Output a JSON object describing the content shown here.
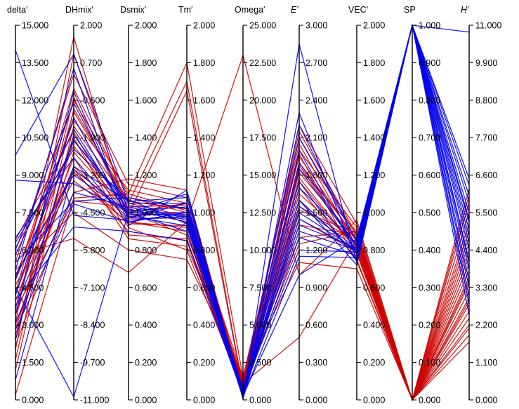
{
  "chart_data": {
    "type": "parallel_coordinates",
    "axes": [
      {
        "name": "delta′",
        "italic": false,
        "min": 0,
        "max": 15,
        "ticks": [
          "0.000",
          "1.500",
          "3.000",
          "4.500",
          "6.000",
          "7.500",
          "9.000",
          "10.500",
          "12.000",
          "13.500",
          "15.000"
        ]
      },
      {
        "name": "DHmix′",
        "italic": false,
        "min": -11,
        "max": 2,
        "ticks": [
          "-11.000",
          "-9.700",
          "-8.400",
          "-7.100",
          "-5.800",
          "-4.500",
          "-3.200",
          "-1.900",
          "-0.600",
          "0.700",
          "2.000"
        ]
      },
      {
        "name": "Dsmix′",
        "italic": false,
        "min": 0,
        "max": 2,
        "ticks": [
          "0.000",
          "0.200",
          "0.400",
          "0.600",
          "0.800",
          "1.000",
          "1.200",
          "1.400",
          "1.600",
          "1.800",
          "2.000"
        ]
      },
      {
        "name": "Tm′",
        "italic": false,
        "min": 0,
        "max": 2,
        "ticks": [
          "0.000",
          "0.200",
          "0.400",
          "0.600",
          "0.800",
          "1.000",
          "1.200",
          "1.400",
          "1.600",
          "1.800",
          "2.000"
        ]
      },
      {
        "name": "Omega′",
        "italic": false,
        "min": 0,
        "max": 25,
        "ticks": [
          "0.000",
          "2.500",
          "5.000",
          "7.500",
          "10.000",
          "12.500",
          "15.000",
          "17.500",
          "20.000",
          "22.500",
          "25.000"
        ]
      },
      {
        "name": "E′",
        "italic": true,
        "min": 0,
        "max": 3,
        "ticks": [
          "0.000",
          "0.300",
          "0.600",
          "0.900",
          "1.200",
          "1.500",
          "1.800",
          "2.100",
          "2.400",
          "2.700",
          "3.000"
        ]
      },
      {
        "name": "VEC′",
        "italic": false,
        "min": 0,
        "max": 2,
        "ticks": [
          "0.000",
          "0.200",
          "0.400",
          "0.600",
          "0.800",
          "1.000",
          "1.200",
          "1.400",
          "1.600",
          "1.800",
          "2.000"
        ]
      },
      {
        "name": "SP",
        "italic": false,
        "min": 0,
        "max": 1,
        "ticks": [
          "0.000",
          "0.100",
          "0.200",
          "0.300",
          "0.400",
          "0.500",
          "0.600",
          "0.700",
          "0.800",
          "0.900",
          "1.000"
        ]
      },
      {
        "name": "H′",
        "italic": true,
        "min": 0,
        "max": 11,
        "ticks": [
          "0.000",
          "1.100",
          "2.200",
          "3.300",
          "4.400",
          "5.500",
          "6.600",
          "7.700",
          "8.800",
          "9.900",
          "11.000"
        ]
      }
    ],
    "series": [
      {
        "group": "red",
        "color": "#cc0000",
        "values": [
          [
            0.2,
            -4.0,
            1.1,
            1.8,
            1.5,
            1.95,
            0.85,
            0.0,
            2.8
          ],
          [
            1.2,
            -1.5,
            1.05,
            1.7,
            0.8,
            1.85,
            0.9,
            0.0,
            3.5
          ],
          [
            2.0,
            1.0,
            1.0,
            1.05,
            1.0,
            2.15,
            0.88,
            0.0,
            4.2
          ],
          [
            2.4,
            -0.5,
            0.98,
            1.0,
            0.6,
            2.05,
            0.82,
            0.0,
            2.2
          ],
          [
            2.8,
            -2.0,
            1.02,
            0.95,
            0.4,
            1.75,
            0.8,
            0.0,
            5.0
          ],
          [
            3.1,
            1.6,
            0.95,
            0.9,
            0.9,
            1.6,
            0.78,
            0.0,
            3.0
          ],
          [
            3.4,
            -3.0,
            0.9,
            0.85,
            1.2,
            1.55,
            0.84,
            0.0,
            4.8
          ],
          [
            3.7,
            -1.0,
            1.05,
            0.98,
            0.5,
            1.9,
            0.86,
            0.0,
            6.2
          ],
          [
            4.0,
            -2.6,
            0.86,
            0.82,
            1.4,
            1.3,
            0.9,
            0.0,
            2.6
          ],
          [
            4.3,
            -0.2,
            1.08,
            1.0,
            0.7,
            2.0,
            0.92,
            0.0,
            5.5
          ],
          [
            4.6,
            -3.4,
            0.95,
            0.92,
            1.0,
            1.4,
            0.88,
            0.0,
            3.8
          ],
          [
            4.9,
            -1.3,
            1.12,
            1.05,
            0.3,
            1.7,
            0.75,
            0.0,
            1.9
          ],
          [
            5.2,
            -4.5,
            0.8,
            0.75,
            1.6,
            1.1,
            0.7,
            0.0,
            4.0
          ],
          [
            5.5,
            0.3,
            1.15,
            1.08,
            0.9,
            2.2,
            0.94,
            0.0,
            6.0
          ],
          [
            5.8,
            -5.4,
            0.68,
            0.95,
            23.0,
            1.0,
            0.96,
            0.0,
            3.2
          ],
          [
            6.1,
            -2.2,
            1.0,
            0.88,
            1.2,
            1.82,
            0.85,
            0.0,
            2.4
          ],
          [
            6.4,
            -1.7,
            0.92,
            0.8,
            0.6,
            1.65,
            0.83,
            0.0,
            5.2
          ],
          [
            2.2,
            -3.8,
            1.18,
            1.12,
            0.4,
            1.45,
            0.79,
            0.0,
            3.6
          ],
          [
            1.6,
            -0.9,
            1.06,
            1.02,
            1.1,
            0.5,
            0.86,
            0.0,
            4.4
          ],
          [
            3.0,
            -2.9,
            0.97,
            0.97,
            1.3,
            1.97,
            0.74,
            0.0,
            2.9
          ],
          [
            3.6,
            -4.1,
            1.03,
            1.04,
            0.8,
            1.25,
            0.9,
            0.0,
            3.4
          ],
          [
            4.2,
            -1.9,
            0.88,
            0.86,
            0.5,
            1.88,
            0.81,
            0.0,
            1.7
          ],
          [
            4.8,
            -0.6,
            1.1,
            1.01,
            1.5,
            2.1,
            0.87,
            0.0,
            4.6
          ],
          [
            5.0,
            -3.1,
            0.94,
            0.93,
            0.2,
            1.52,
            0.89,
            0.0,
            5.8
          ],
          [
            2.6,
            -2.4,
            0.99,
            1.65,
            0.7,
            1.78,
            0.8,
            0.0,
            2.1
          ]
        ]
      },
      {
        "group": "blue",
        "color": "#0000ee",
        "values": [
          [
            14.0,
            -4.6,
            0.96,
            0.98,
            0.1,
            1.5,
            0.8,
            1.0,
            10.8
          ],
          [
            9.8,
            1.0,
            1.05,
            1.05,
            0.2,
            1.6,
            0.78,
            1.0,
            6.5
          ],
          [
            8.8,
            -3.5,
            1.0,
            1.1,
            0.3,
            2.1,
            0.85,
            1.0,
            5.8
          ],
          [
            6.5,
            -2.6,
            0.95,
            1.0,
            0.5,
            2.3,
            0.75,
            1.0,
            4.4
          ],
          [
            6.0,
            -0.7,
            1.02,
            0.95,
            0.2,
            1.85,
            0.82,
            1.0,
            5.0
          ],
          [
            5.8,
            -1.6,
            0.98,
            0.93,
            0.6,
            1.45,
            0.8,
            1.0,
            3.3
          ],
          [
            5.5,
            -4.1,
            1.08,
            1.02,
            0.4,
            1.3,
            0.77,
            1.0,
            4.0
          ],
          [
            5.2,
            0.5,
            0.93,
            1.12,
            0.1,
            2.85,
            0.73,
            1.0,
            6.0
          ],
          [
            5.0,
            -3.2,
            1.0,
            1.0,
            0.3,
            1.7,
            0.83,
            1.0,
            2.8
          ],
          [
            4.8,
            -2.0,
            1.04,
            0.97,
            0.7,
            1.2,
            0.79,
            1.0,
            4.8
          ],
          [
            4.5,
            -10.9,
            1.0,
            0.9,
            0.2,
            1.55,
            0.81,
            1.0,
            3.8
          ],
          [
            4.2,
            -1.2,
            0.97,
            1.05,
            0.5,
            1.75,
            0.74,
            1.0,
            5.3
          ],
          [
            4.0,
            -5.0,
            0.9,
            0.85,
            0.3,
            1.0,
            0.86,
            1.0,
            2.5
          ],
          [
            3.7,
            -2.9,
            1.06,
            1.08,
            0.1,
            2.0,
            0.78,
            1.0,
            6.3
          ],
          [
            3.4,
            -0.3,
            0.99,
            0.99,
            0.8,
            1.35,
            0.8,
            1.0,
            4.1
          ],
          [
            3.1,
            -3.8,
            1.03,
            0.96,
            0.4,
            1.9,
            0.82,
            1.0,
            3.5
          ],
          [
            2.8,
            -4.2,
            0.95,
            1.0,
            0.2,
            1.15,
            0.76,
            1.0,
            5.5
          ],
          [
            2.4,
            -1.8,
            1.01,
            1.03,
            0.6,
            2.2,
            0.84,
            1.0,
            4.6
          ],
          [
            6.3,
            -2.3,
            1.07,
            0.94,
            0.3,
            1.6,
            0.72,
            1.0,
            3.0
          ],
          [
            0.8,
            -3.0,
            1.0,
            0.98,
            0.4,
            1.4,
            0.81,
            1.0,
            5.2
          ]
        ]
      }
    ]
  }
}
